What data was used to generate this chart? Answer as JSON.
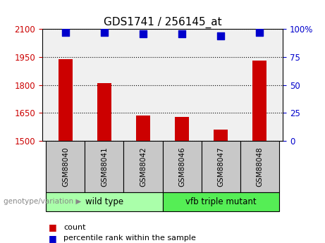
{
  "title": "GDS1741 / 256145_at",
  "categories": [
    "GSM88040",
    "GSM88041",
    "GSM88042",
    "GSM88046",
    "GSM88047",
    "GSM88048"
  ],
  "count_values": [
    1940,
    1810,
    1635,
    1630,
    1560,
    1930
  ],
  "percentile_values": [
    97,
    97,
    96,
    96,
    94,
    97
  ],
  "ylim_left": [
    1500,
    2100
  ],
  "ylim_right": [
    0,
    100
  ],
  "yticks_left": [
    1500,
    1650,
    1800,
    1950,
    2100
  ],
  "yticks_right": [
    0,
    25,
    50,
    75,
    100
  ],
  "ytick_labels_right": [
    "0",
    "25",
    "50",
    "75",
    "100%"
  ],
  "bar_color": "#cc0000",
  "dot_color": "#0000cc",
  "tick_color_left": "#cc0000",
  "tick_color_right": "#0000cc",
  "plot_bg_color": "#f0f0f0",
  "sample_box_color": "#c8c8c8",
  "groups": [
    {
      "label": "wild type",
      "indices": [
        0,
        1,
        2
      ],
      "color": "#aaffaa"
    },
    {
      "label": "vfb triple mutant",
      "indices": [
        3,
        4,
        5
      ],
      "color": "#55ee55"
    }
  ],
  "group_row_label": "genotype/variation",
  "legend_count_label": "count",
  "legend_pct_label": "percentile rank within the sample",
  "bar_width": 0.35,
  "dot_size": 45,
  "title_fontsize": 11,
  "axis_fontsize": 8.5,
  "label_fontsize": 7.5,
  "group_fontsize": 8.5,
  "legend_fontsize": 8
}
